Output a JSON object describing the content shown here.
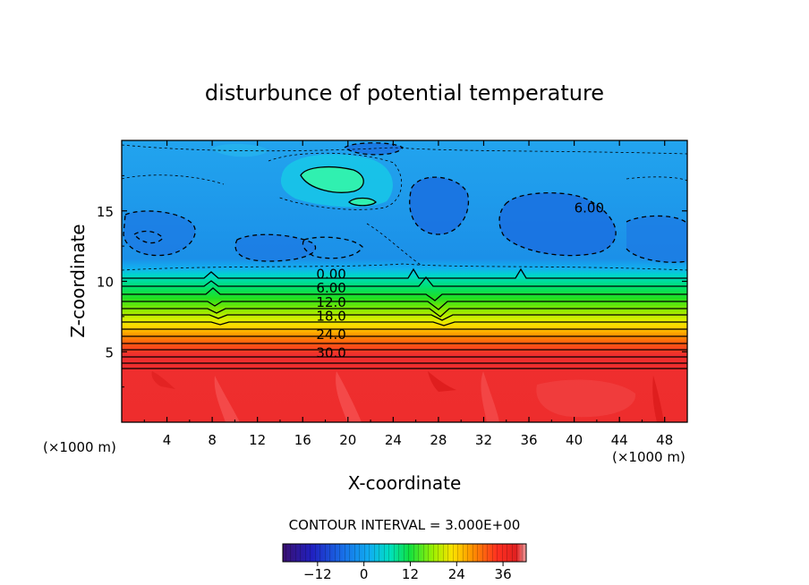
{
  "chart_data": {
    "type": "heatmap",
    "title": "disturbunce of potential temperature",
    "xlabel": "X-coordinate",
    "ylabel": "Z-coordinate",
    "x_unit_left": "(×1000 m)",
    "x_unit_right": "(×1000 m)",
    "xlim": [
      0,
      50
    ],
    "ylim": [
      0,
      20
    ],
    "xticks": [
      4,
      8,
      12,
      16,
      20,
      24,
      28,
      32,
      36,
      40,
      44,
      48
    ],
    "yticks": [
      5,
      10,
      15
    ],
    "contour_interval_text": "CONTOUR INTERVAL = 3.000E+00",
    "contour_labels": [
      {
        "text": "0.00",
        "x": 17.2,
        "y": 10.2
      },
      {
        "text": "6.00",
        "x": 17.2,
        "y": 9.2
      },
      {
        "text": "12.0",
        "x": 17.2,
        "y": 8.2
      },
      {
        "text": "18.0",
        "x": 17.2,
        "y": 7.2
      },
      {
        "text": "24.0",
        "x": 17.2,
        "y": 5.9
      },
      {
        "text": "30.0",
        "x": 17.2,
        "y": 4.6
      },
      {
        "text": "6.00",
        "x": 40.0,
        "y": 14.9
      }
    ],
    "colorbar": {
      "ticks": [
        -12,
        0,
        12,
        24,
        36
      ],
      "range": [
        -21,
        42
      ]
    },
    "colors": {
      "upper_layer": "#1f9be8",
      "cold_anomaly": "#1a70e0",
      "warm_anomaly": "#2ff0b8",
      "lower_layer": "#ee2d2d"
    }
  }
}
